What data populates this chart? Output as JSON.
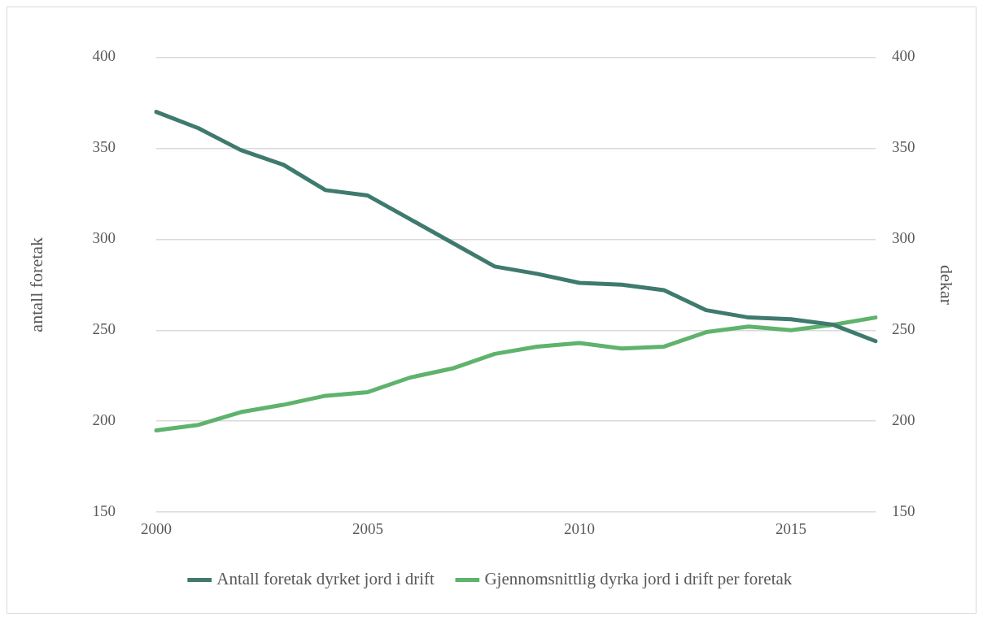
{
  "chart_data": {
    "type": "line",
    "categories": [
      "2000",
      null,
      null,
      null,
      null,
      "2005",
      null,
      null,
      null,
      null,
      "2010",
      null,
      null,
      null,
      null,
      "2015",
      null,
      null
    ],
    "series": [
      {
        "name": "Antall foretak dyrket jord i drift",
        "color": "#3f7a6e",
        "values": [
          370,
          361,
          349,
          341,
          327,
          324,
          311,
          298,
          285,
          281,
          276,
          275,
          272,
          261,
          257,
          256,
          253,
          244
        ]
      },
      {
        "name": "Gjennomsnittlig dyrka jord i drift per foretak",
        "color": "#5fb36c",
        "axis": "y2",
        "values": [
          195,
          198,
          205,
          209,
          214,
          216,
          224,
          229,
          237,
          241,
          243,
          240,
          241,
          249,
          252,
          250,
          253,
          257
        ]
      }
    ],
    "ylabel": "antall foretak",
    "y2label": "dekar",
    "ylim": [
      150,
      400
    ],
    "yticks": [
      150,
      200,
      250,
      300,
      350,
      400
    ],
    "y2lim": [
      150,
      400
    ],
    "y2ticks": [
      150,
      200,
      250,
      300,
      350,
      400
    ],
    "grid": "y",
    "legend": "bottom"
  }
}
